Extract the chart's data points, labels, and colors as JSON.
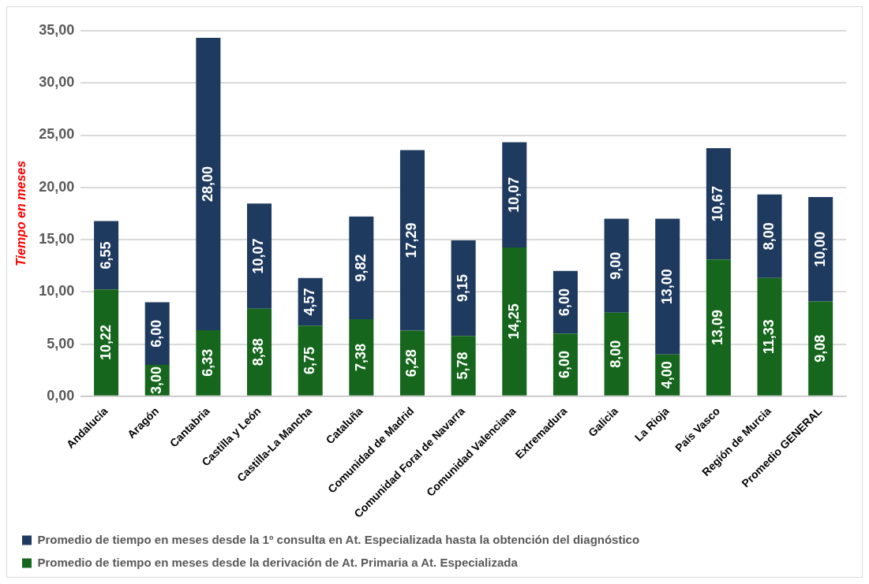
{
  "chart_data": {
    "type": "bar",
    "stacked": true,
    "ylabel": "Tiempo en meses",
    "categories": [
      "Andalucía",
      "Aragón",
      "Cantabria",
      "Castilla y León",
      "Castilla-La Mancha",
      "Cataluña",
      "Comunidad de Madrid",
      "Comunidad Foral de Navarra",
      "Comunidad Valenciana",
      "Extremadura",
      "Galicia",
      "La Rioja",
      "País Vasco",
      "Región de Murcia",
      "Promedio GENERAL"
    ],
    "series": [
      {
        "name": "Promedio de tiempo en meses desde la derivación de At. Primaria a At. Especializada",
        "color": "#16661d",
        "values": [
          10.22,
          3.0,
          6.33,
          8.38,
          6.75,
          7.38,
          6.28,
          5.78,
          14.25,
          6.0,
          8.0,
          4.0,
          13.09,
          11.33,
          9.08
        ],
        "value_labels": [
          "10,22",
          "3,00",
          "6,33",
          "8,38",
          "6,75",
          "7,38",
          "6,28",
          "5,78",
          "14,25",
          "6,00",
          "8,00",
          "4,00",
          "13,09",
          "11,33",
          "9,08"
        ]
      },
      {
        "name": "Promedio de tiempo en meses desde la 1º consulta en At. Especializada hasta la obtención del diagnóstico",
        "color": "#1f3a5f",
        "values": [
          6.55,
          6.0,
          28.0,
          10.07,
          4.57,
          9.82,
          17.29,
          9.15,
          10.07,
          6.0,
          9.0,
          13.0,
          10.67,
          8.0,
          10.0
        ],
        "value_labels": [
          "6,55",
          "6,00",
          "28,00",
          "10,07",
          "4,57",
          "9,82",
          "17,29",
          "9,15",
          "10,07",
          "6,00",
          "9,00",
          "13,00",
          "10,67",
          "8,00",
          "10,00"
        ]
      }
    ],
    "ylim": [
      0,
      35
    ],
    "yticks": [
      {
        "value": 0,
        "label": "0,00"
      },
      {
        "value": 5,
        "label": "5,00"
      },
      {
        "value": 10,
        "label": "10,00"
      },
      {
        "value": 15,
        "label": "15,00"
      },
      {
        "value": 20,
        "label": "20,00"
      },
      {
        "value": 25,
        "label": "25,00"
      },
      {
        "value": 30,
        "label": "30,00"
      },
      {
        "value": 35,
        "label": "35,00"
      }
    ],
    "grid": "y",
    "legend": "bottom"
  }
}
